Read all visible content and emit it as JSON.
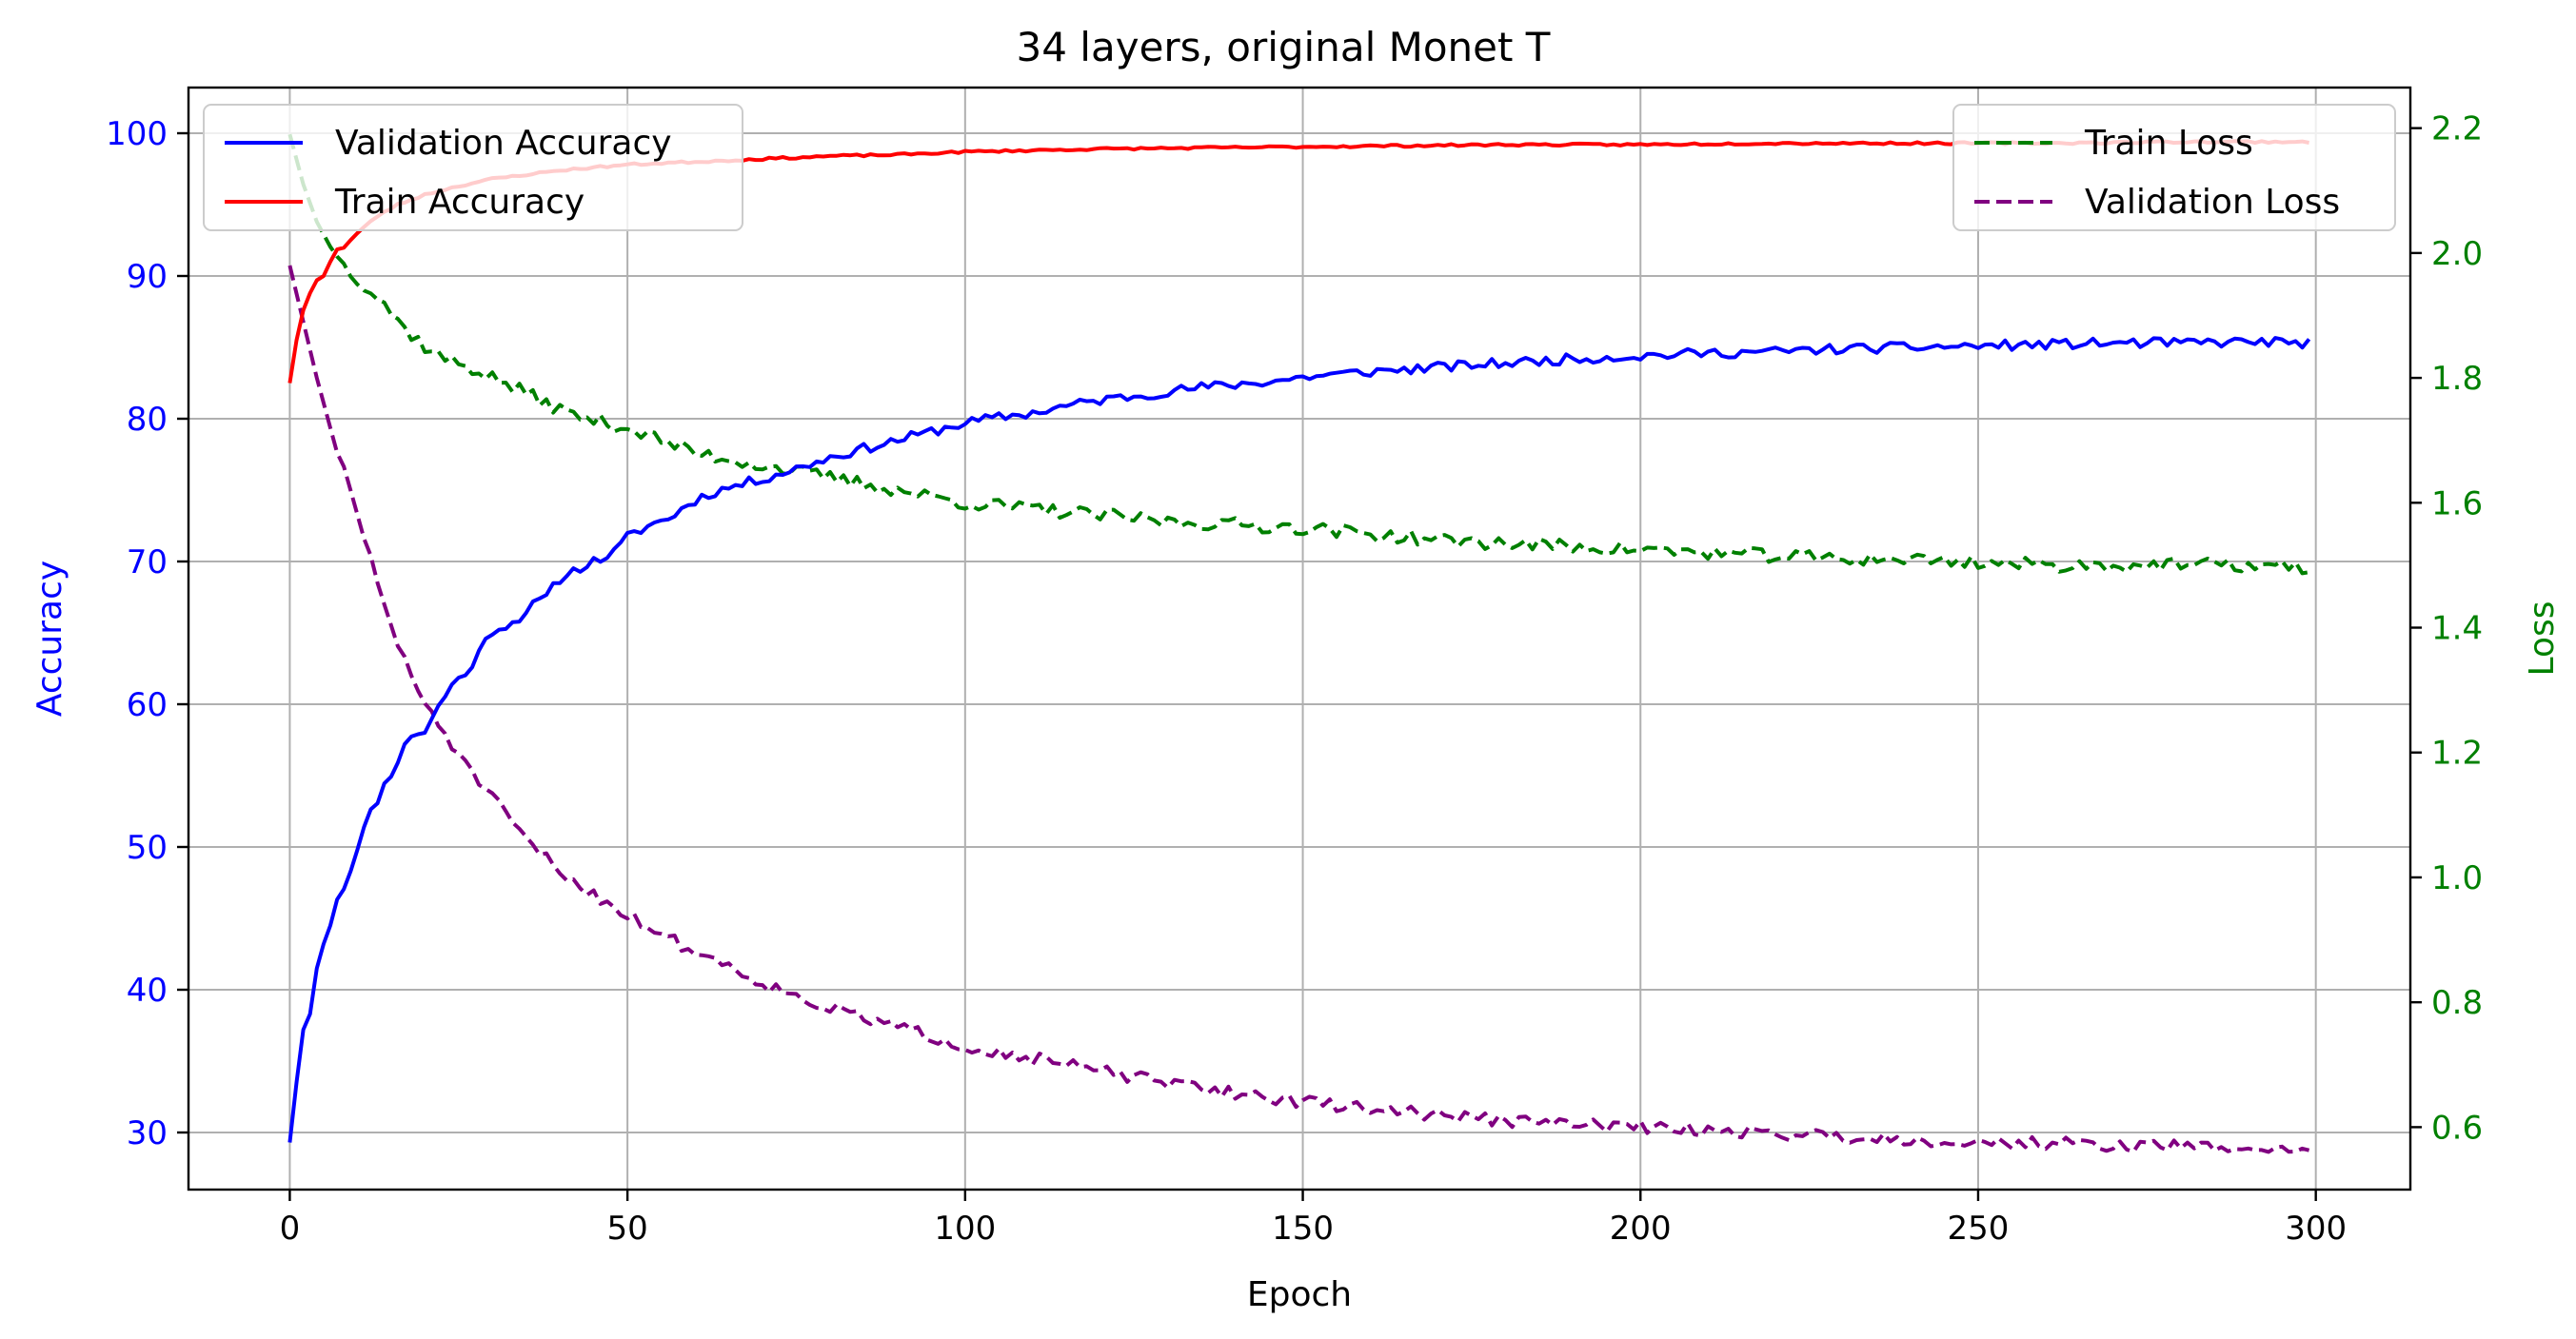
{
  "chart_data": {
    "type": "line",
    "title": "34 layers, original Monet T",
    "xlabel": "Epoch",
    "ylabel_left": "Accuracy",
    "ylabel_right": "Loss",
    "xlim": [
      -15,
      314
    ],
    "ylim_left": [
      26,
      103.2
    ],
    "ylim_right": [
      0.5,
      2.265
    ],
    "xticks": [
      0,
      50,
      100,
      150,
      200,
      250,
      300
    ],
    "yticks_left": [
      30,
      40,
      50,
      60,
      70,
      80,
      90,
      100
    ],
    "yticks_right": [
      0.6,
      0.8,
      1.0,
      1.2,
      1.4,
      1.6,
      1.8,
      2.0,
      2.2
    ],
    "grid": true,
    "n_epochs": 300,
    "legend_left": {
      "placement": "upper-left",
      "entries": [
        "Validation Accuracy",
        "Train Accuracy"
      ]
    },
    "legend_right": {
      "placement": "upper-right",
      "entries": [
        "Train Loss",
        "Validation Loss"
      ]
    },
    "colors": {
      "validation_accuracy": "#0000ff",
      "train_accuracy": "#ff0000",
      "train_loss": "#008000",
      "validation_loss": "#800080",
      "left_axis": "#0000ff",
      "right_axis": "#008000"
    },
    "series": [
      {
        "name": "Validation Accuracy",
        "axis": "left",
        "style": "solid",
        "color": "#0000ff",
        "points": [
          [
            0,
            29.3
          ],
          [
            1,
            33.5
          ],
          [
            2,
            37.2
          ],
          [
            3,
            38.3
          ],
          [
            4,
            41.5
          ],
          [
            5,
            43.2
          ],
          [
            6,
            44.5
          ],
          [
            7,
            46.5
          ],
          [
            8,
            47.2
          ],
          [
            9,
            48.4
          ],
          [
            10,
            50.1
          ],
          [
            12,
            52.4
          ],
          [
            14,
            54.3
          ],
          [
            16,
            56.1
          ],
          [
            18,
            57.9
          ],
          [
            20,
            58.1
          ],
          [
            22,
            59.8
          ],
          [
            24,
            61.4
          ],
          [
            26,
            62.1
          ],
          [
            28,
            63.6
          ],
          [
            30,
            65.2
          ],
          [
            33,
            65.7
          ],
          [
            36,
            66.9
          ],
          [
            38,
            67.5
          ],
          [
            40,
            68.8
          ],
          [
            43,
            69.6
          ],
          [
            46,
            70.2
          ],
          [
            48,
            70.6
          ],
          [
            50,
            71.7
          ],
          [
            53,
            72.5
          ],
          [
            56,
            73.0
          ],
          [
            60,
            74.3
          ],
          [
            63,
            74.9
          ],
          [
            66,
            75.3
          ],
          [
            70,
            75.8
          ],
          [
            75,
            76.5
          ],
          [
            80,
            77.3
          ],
          [
            85,
            77.9
          ],
          [
            90,
            78.5
          ],
          [
            95,
            79.1
          ],
          [
            100,
            79.7
          ],
          [
            105,
            80.1
          ],
          [
            110,
            80.4
          ],
          [
            115,
            80.9
          ],
          [
            120,
            81.3
          ],
          [
            125,
            81.6
          ],
          [
            130,
            81.9
          ],
          [
            135,
            82.2
          ],
          [
            140,
            82.4
          ],
          [
            145,
            82.6
          ],
          [
            150,
            82.9
          ],
          [
            160,
            83.3
          ],
          [
            170,
            83.6
          ],
          [
            180,
            83.9
          ],
          [
            190,
            84.2
          ],
          [
            200,
            84.4
          ],
          [
            210,
            84.6
          ],
          [
            220,
            84.7
          ],
          [
            230,
            84.9
          ],
          [
            240,
            85.0
          ],
          [
            250,
            85.1
          ],
          [
            260,
            85.2
          ],
          [
            270,
            85.3
          ],
          [
            280,
            85.3
          ],
          [
            290,
            85.4
          ],
          [
            299,
            85.3
          ]
        ]
      },
      {
        "name": "Train Accuracy",
        "axis": "left",
        "style": "solid",
        "color": "#ff0000",
        "points": [
          [
            0,
            82.5
          ],
          [
            1,
            85.5
          ],
          [
            2,
            87.6
          ],
          [
            3,
            88.8
          ],
          [
            4,
            89.7
          ],
          [
            5,
            90.0
          ],
          [
            6,
            91.0
          ],
          [
            7,
            91.9
          ],
          [
            8,
            92.0
          ],
          [
            10,
            93.0
          ],
          [
            13,
            94.2
          ],
          [
            16,
            95.0
          ],
          [
            20,
            95.7
          ],
          [
            25,
            96.3
          ],
          [
            30,
            96.8
          ],
          [
            35,
            97.1
          ],
          [
            40,
            97.4
          ],
          [
            45,
            97.6
          ],
          [
            50,
            97.8
          ],
          [
            60,
            98.0
          ],
          [
            70,
            98.2
          ],
          [
            80,
            98.4
          ],
          [
            90,
            98.5
          ],
          [
            100,
            98.7
          ],
          [
            120,
            98.9
          ],
          [
            140,
            99.0
          ],
          [
            160,
            99.1
          ],
          [
            180,
            99.2
          ],
          [
            200,
            99.2
          ],
          [
            220,
            99.3
          ],
          [
            240,
            99.3
          ],
          [
            260,
            99.3
          ],
          [
            280,
            99.4
          ],
          [
            299,
            99.4
          ]
        ]
      },
      {
        "name": "Train Loss",
        "axis": "right",
        "style": "dashed",
        "color": "#008000",
        "points": [
          [
            0,
            2.19
          ],
          [
            1,
            2.15
          ],
          [
            2,
            2.11
          ],
          [
            3,
            2.08
          ],
          [
            4,
            2.05
          ],
          [
            5,
            2.03
          ],
          [
            6,
            2.01
          ],
          [
            7,
            2.0
          ],
          [
            8,
            1.98
          ],
          [
            10,
            1.96
          ],
          [
            12,
            1.94
          ],
          [
            14,
            1.92
          ],
          [
            16,
            1.89
          ],
          [
            18,
            1.87
          ],
          [
            20,
            1.85
          ],
          [
            23,
            1.83
          ],
          [
            26,
            1.82
          ],
          [
            30,
            1.8
          ],
          [
            34,
            1.78
          ],
          [
            38,
            1.76
          ],
          [
            42,
            1.74
          ],
          [
            46,
            1.73
          ],
          [
            50,
            1.72
          ],
          [
            55,
            1.7
          ],
          [
            60,
            1.68
          ],
          [
            65,
            1.67
          ],
          [
            70,
            1.66
          ],
          [
            75,
            1.65
          ],
          [
            80,
            1.64
          ],
          [
            85,
            1.63
          ],
          [
            90,
            1.62
          ],
          [
            95,
            1.61
          ],
          [
            100,
            1.6
          ],
          [
            105,
            1.595
          ],
          [
            110,
            1.59
          ],
          [
            115,
            1.585
          ],
          [
            120,
            1.58
          ],
          [
            130,
            1.57
          ],
          [
            140,
            1.565
          ],
          [
            150,
            1.56
          ],
          [
            160,
            1.55
          ],
          [
            170,
            1.54
          ],
          [
            180,
            1.535
          ],
          [
            190,
            1.53
          ],
          [
            200,
            1.525
          ],
          [
            210,
            1.52
          ],
          [
            220,
            1.515
          ],
          [
            230,
            1.51
          ],
          [
            240,
            1.51
          ],
          [
            250,
            1.505
          ],
          [
            260,
            1.5
          ],
          [
            270,
            1.5
          ],
          [
            280,
            1.5
          ],
          [
            290,
            1.5
          ],
          [
            299,
            1.495
          ]
        ]
      },
      {
        "name": "Validation Loss",
        "axis": "right",
        "style": "dashed",
        "color": "#800080",
        "points": [
          [
            0,
            1.98
          ],
          [
            2,
            1.89
          ],
          [
            4,
            1.8
          ],
          [
            6,
            1.72
          ],
          [
            8,
            1.65
          ],
          [
            10,
            1.58
          ],
          [
            12,
            1.51
          ],
          [
            14,
            1.44
          ],
          [
            16,
            1.37
          ],
          [
            18,
            1.32
          ],
          [
            20,
            1.28
          ],
          [
            23,
            1.23
          ],
          [
            26,
            1.18
          ],
          [
            29,
            1.14
          ],
          [
            32,
            1.1
          ],
          [
            35,
            1.06
          ],
          [
            38,
            1.03
          ],
          [
            41,
            1.0
          ],
          [
            44,
            0.98
          ],
          [
            47,
            0.96
          ],
          [
            50,
            0.94
          ],
          [
            55,
            0.91
          ],
          [
            60,
            0.88
          ],
          [
            65,
            0.86
          ],
          [
            70,
            0.83
          ],
          [
            75,
            0.81
          ],
          [
            80,
            0.79
          ],
          [
            85,
            0.775
          ],
          [
            90,
            0.76
          ],
          [
            95,
            0.745
          ],
          [
            100,
            0.73
          ],
          [
            105,
            0.72
          ],
          [
            110,
            0.71
          ],
          [
            115,
            0.7
          ],
          [
            120,
            0.69
          ],
          [
            125,
            0.68
          ],
          [
            130,
            0.67
          ],
          [
            140,
            0.655
          ],
          [
            150,
            0.64
          ],
          [
            160,
            0.63
          ],
          [
            170,
            0.62
          ],
          [
            180,
            0.61
          ],
          [
            190,
            0.605
          ],
          [
            200,
            0.6
          ],
          [
            210,
            0.595
          ],
          [
            220,
            0.59
          ],
          [
            230,
            0.585
          ],
          [
            240,
            0.58
          ],
          [
            250,
            0.575
          ],
          [
            260,
            0.575
          ],
          [
            270,
            0.57
          ],
          [
            280,
            0.57
          ],
          [
            290,
            0.565
          ],
          [
            299,
            0.565
          ]
        ]
      }
    ]
  }
}
